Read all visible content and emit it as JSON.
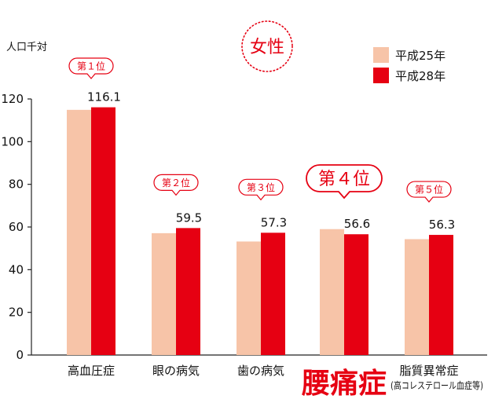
{
  "chart_data": {
    "type": "bar",
    "title": "女性",
    "ylabel": "人口千対",
    "ylim": [
      0,
      120
    ],
    "yticks": [
      0,
      20,
      40,
      60,
      80,
      100,
      120
    ],
    "categories": [
      {
        "label": "高血圧症",
        "sub": "",
        "highlight": false
      },
      {
        "label": "眼の病気",
        "sub": "",
        "highlight": false
      },
      {
        "label": "歯の病気",
        "sub": "",
        "highlight": false
      },
      {
        "label": "腰痛症",
        "sub": "",
        "highlight": true
      },
      {
        "label": "脂質異常症",
        "sub": "(高コレステロール血症等)",
        "highlight": false
      }
    ],
    "series": [
      {
        "name": "平成25年",
        "color": "#f7c4a8",
        "values": [
          114.9,
          57.1,
          53.2,
          59.0,
          54.3
        ]
      },
      {
        "name": "平成28年",
        "color": "#e60012",
        "values": [
          116.1,
          59.5,
          57.3,
          56.6,
          56.3
        ]
      }
    ],
    "value_labels": [
      "116.1",
      "59.5",
      "57.3",
      "56.6",
      "56.3"
    ],
    "ranks": [
      "第１位",
      "第２位",
      "第３位",
      "第４位",
      "第５位"
    ],
    "legend_position": "top-right"
  }
}
